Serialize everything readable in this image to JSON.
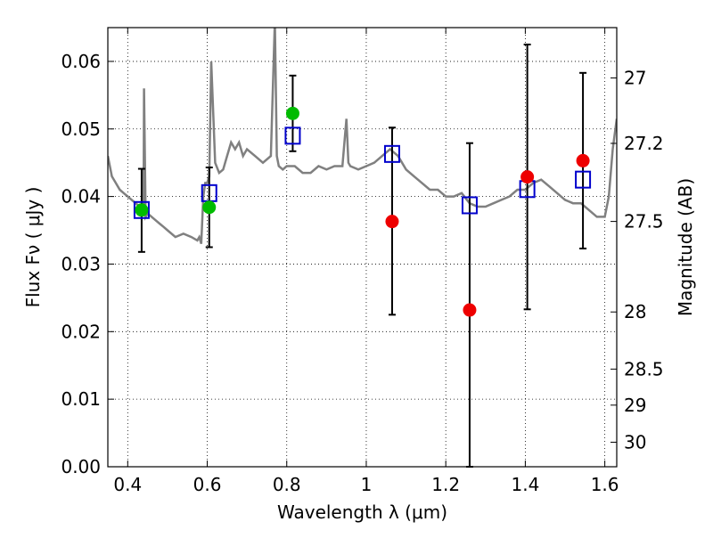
{
  "chart_data": {
    "type": "scatter",
    "title": "",
    "xlabel": "Wavelength  λ (μm)",
    "ylabel": "Flux  Fν  ( μJy )",
    "y2label": "Magnitude (AB)",
    "xlim": [
      0.35,
      1.63
    ],
    "ylim": [
      0.0,
      0.065
    ],
    "grid": true,
    "x_ticks": [
      0.4,
      0.6,
      0.8,
      1.0,
      1.2,
      1.4,
      1.6
    ],
    "x_tick_labels": [
      "0.4",
      "0.6",
      "0.8",
      "1",
      "1.2",
      "1.4",
      "1.6"
    ],
    "y_ticks": [
      0.0,
      0.01,
      0.02,
      0.03,
      0.04,
      0.05,
      0.06
    ],
    "y_tick_labels": [
      "0.00",
      "0.01",
      "0.02",
      "0.03",
      "0.04",
      "0.05",
      "0.06"
    ],
    "y2_ticks": [
      27,
      27.2,
      27.5,
      28,
      28.5,
      29,
      30
    ],
    "y2_tick_labels": [
      "27",
      "27.2",
      "27.5",
      "28",
      "28.5",
      "29",
      "30"
    ],
    "colors": {
      "model": "#808080",
      "model_photometry": "#0000cc",
      "green_points": "#00bb00",
      "red_points": "#ee0000",
      "error_bars": "#000000"
    },
    "series": [
      {
        "kind": "line",
        "x": [
          0.35,
          0.36,
          0.37,
          0.38,
          0.39,
          0.4,
          0.41,
          0.42,
          0.43,
          0.44,
          0.441,
          0.445,
          0.45,
          0.46,
          0.47,
          0.48,
          0.49,
          0.5,
          0.52,
          0.54,
          0.56,
          0.575,
          0.58,
          0.585,
          0.59,
          0.595,
          0.6,
          0.605,
          0.61,
          0.62,
          0.63,
          0.64,
          0.65,
          0.66,
          0.67,
          0.68,
          0.69,
          0.7,
          0.72,
          0.74,
          0.76,
          0.77,
          0.775,
          0.78,
          0.79,
          0.8,
          0.82,
          0.84,
          0.86,
          0.88,
          0.9,
          0.92,
          0.94,
          0.95,
          0.955,
          0.96,
          0.98,
          1.0,
          1.02,
          1.04,
          1.06,
          1.08,
          1.1,
          1.12,
          1.14,
          1.16,
          1.18,
          1.2,
          1.22,
          1.24,
          1.26,
          1.28,
          1.3,
          1.32,
          1.34,
          1.36,
          1.38,
          1.4,
          1.42,
          1.44,
          1.46,
          1.48,
          1.5,
          1.52,
          1.54,
          1.56,
          1.58,
          1.6,
          1.61,
          1.62,
          1.63
        ],
        "y": [
          0.046,
          0.043,
          0.042,
          0.041,
          0.0405,
          0.04,
          0.0395,
          0.039,
          0.0385,
          0.038,
          0.056,
          0.037,
          0.0375,
          0.037,
          0.0365,
          0.036,
          0.0355,
          0.035,
          0.034,
          0.0345,
          0.034,
          0.0335,
          0.034,
          0.033,
          0.04,
          0.042,
          0.042,
          0.043,
          0.06,
          0.045,
          0.0435,
          0.044,
          0.046,
          0.048,
          0.047,
          0.048,
          0.046,
          0.047,
          0.046,
          0.045,
          0.046,
          0.066,
          0.046,
          0.0445,
          0.044,
          0.0445,
          0.0445,
          0.0435,
          0.0435,
          0.0445,
          0.044,
          0.0445,
          0.0445,
          0.0515,
          0.045,
          0.0445,
          0.044,
          0.0445,
          0.045,
          0.046,
          0.047,
          0.046,
          0.044,
          0.043,
          0.042,
          0.041,
          0.041,
          0.04,
          0.04,
          0.0405,
          0.039,
          0.0385,
          0.0385,
          0.039,
          0.0395,
          0.04,
          0.041,
          0.041,
          0.042,
          0.0425,
          0.0415,
          0.0405,
          0.0395,
          0.039,
          0.039,
          0.038,
          0.037,
          0.037,
          0.04,
          0.047,
          0.0515
        ]
      },
      {
        "kind": "scatter-open-square",
        "x": [
          0.435,
          0.605,
          0.815,
          1.065,
          1.26,
          1.405,
          1.545
        ],
        "y": [
          0.038,
          0.0405,
          0.049,
          0.0463,
          0.0387,
          0.0411,
          0.0425
        ]
      },
      {
        "kind": "scatter-green",
        "x": [
          0.435,
          0.605,
          0.815
        ],
        "y": [
          0.038,
          0.0384,
          0.0523
        ]
      },
      {
        "kind": "scatter-red",
        "x": [
          1.065,
          1.26,
          1.405,
          1.545
        ],
        "y": [
          0.0363,
          0.0232,
          0.0429,
          0.0453
        ]
      },
      {
        "kind": "error-bars",
        "x": [
          0.435,
          0.605,
          0.815,
          1.065,
          1.26,
          1.405,
          1.545
        ],
        "ylow": [
          0.0318,
          0.0325,
          0.0467,
          0.0225,
          0.0,
          0.0233,
          0.0323
        ],
        "yhigh": [
          0.0441,
          0.0443,
          0.0579,
          0.0502,
          0.0479,
          0.0625,
          0.0583
        ]
      }
    ]
  }
}
